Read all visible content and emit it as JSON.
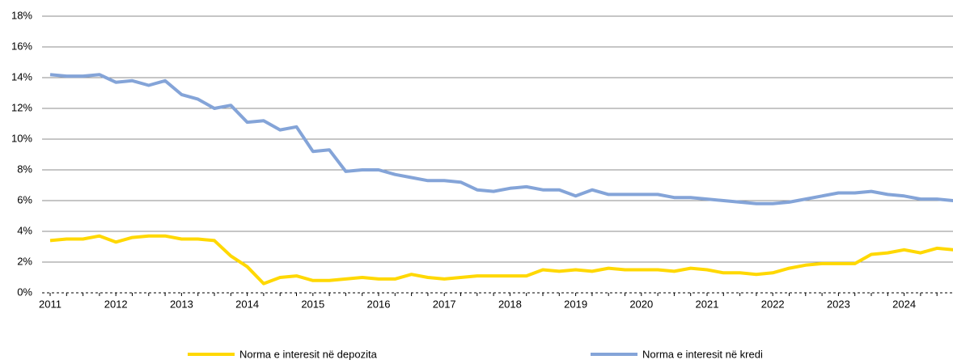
{
  "chart_data": {
    "type": "line",
    "categories": [
      "2011",
      null,
      null,
      null,
      "2012",
      null,
      null,
      null,
      "2013",
      null,
      null,
      null,
      "2014",
      null,
      null,
      null,
      "2015",
      null,
      null,
      null,
      "2016",
      null,
      null,
      null,
      "2017",
      null,
      null,
      null,
      "2018",
      null,
      null,
      null,
      "2019",
      null,
      null,
      null,
      "2020",
      null,
      null,
      null,
      "2021",
      null,
      null,
      null,
      "2022",
      null,
      null,
      null,
      "2023",
      null,
      null,
      null,
      "2024",
      null,
      null,
      null
    ],
    "series": [
      {
        "name": "Norma e interesit në depozita",
        "color": "#ffd800",
        "values": [
          3.4,
          3.5,
          3.5,
          3.7,
          3.3,
          3.6,
          3.7,
          3.7,
          3.5,
          3.5,
          3.4,
          2.4,
          1.7,
          0.6,
          1.0,
          1.1,
          0.8,
          0.8,
          0.9,
          1.0,
          0.9,
          0.9,
          1.2,
          1.0,
          0.9,
          1.0,
          1.1,
          1.1,
          1.1,
          1.1,
          1.5,
          1.4,
          1.5,
          1.4,
          1.6,
          1.5,
          1.5,
          1.5,
          1.4,
          1.6,
          1.5,
          1.3,
          1.3,
          1.2,
          1.3,
          1.6,
          1.8,
          1.9,
          1.9,
          1.9,
          2.5,
          2.6,
          2.8,
          2.6,
          2.9,
          2.8
        ]
      },
      {
        "name": "Norma e interesit në kredi",
        "color": "#84a4d8",
        "values": [
          14.2,
          14.1,
          14.1,
          14.2,
          13.7,
          13.8,
          13.5,
          13.8,
          12.9,
          12.6,
          12.0,
          12.2,
          11.1,
          11.2,
          10.6,
          10.8,
          9.2,
          9.3,
          7.9,
          8.0,
          8.0,
          7.7,
          7.5,
          7.3,
          7.3,
          7.2,
          6.7,
          6.6,
          6.8,
          6.9,
          6.7,
          6.7,
          6.3,
          6.7,
          6.4,
          6.4,
          6.4,
          6.4,
          6.2,
          6.2,
          6.1,
          6.0,
          5.9,
          5.8,
          5.8,
          5.9,
          6.1,
          6.3,
          6.5,
          6.5,
          6.6,
          6.4,
          6.3,
          6.1,
          6.1,
          6.0
        ]
      }
    ],
    "ylim": [
      0,
      18
    ],
    "yticks": [
      {
        "value": 0,
        "label": "0%"
      },
      {
        "value": 2,
        "label": "2%"
      },
      {
        "value": 4,
        "label": "4%"
      },
      {
        "value": 6,
        "label": "6%"
      },
      {
        "value": 8,
        "label": "8%"
      },
      {
        "value": 10,
        "label": "10%"
      },
      {
        "value": 12,
        "label": "12%"
      },
      {
        "value": 14,
        "label": "14%"
      },
      {
        "value": 16,
        "label": "16%"
      },
      {
        "value": 18,
        "label": "18%"
      }
    ],
    "grid": true,
    "legend": "bottom"
  }
}
